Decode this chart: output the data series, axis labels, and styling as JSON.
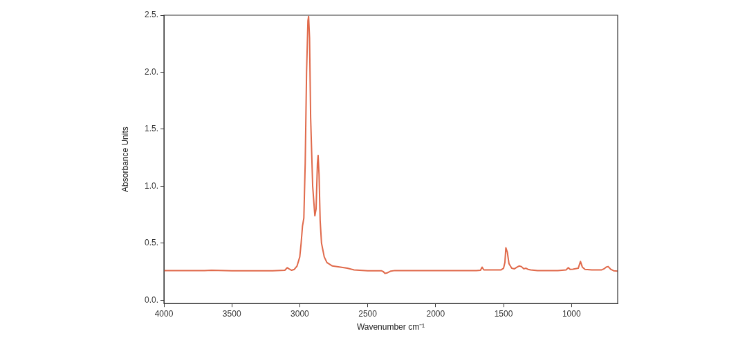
{
  "chart_data": {
    "type": "line",
    "xlabel": "Wavenumber cm⁻¹",
    "ylabel": "Absorbance Units",
    "xlim": [
      4000,
      660
    ],
    "xticks": [
      4000,
      3500,
      3000,
      2500,
      2000,
      1500,
      1000
    ],
    "ylim": [
      -0.03,
      2.5
    ],
    "yticks": [
      {
        "value": 0,
        "label": "0.0."
      },
      {
        "value": 0.5,
        "label": "0.5."
      },
      {
        "value": 1,
        "label": "1.0."
      },
      {
        "value": 1.5,
        "label": "1.5."
      },
      {
        "value": 2,
        "label": "2.0."
      },
      {
        "value": 2.5,
        "label": "2.5."
      }
    ],
    "grid": false,
    "legend": false,
    "marker": "none",
    "line_style": "solid",
    "series": [
      {
        "color": "#e0694a",
        "x": [
          4000,
          3700,
          3650,
          3500,
          3200,
          3110,
          3092,
          3080,
          3060,
          3040,
          3020,
          3000,
          2990,
          2980,
          2970,
          2960,
          2950,
          2940,
          2935,
          2928,
          2920,
          2905,
          2889,
          2880,
          2870,
          2865,
          2858,
          2850,
          2840,
          2820,
          2800,
          2760,
          2700,
          2650,
          2600,
          2500,
          2400,
          2385,
          2373,
          2355,
          2330,
          2300,
          1700,
          1670,
          1658,
          1645,
          1520,
          1500,
          1490,
          1483,
          1472,
          1460,
          1440,
          1420,
          1400,
          1385,
          1370,
          1350,
          1335,
          1320,
          1300,
          1250,
          1100,
          1040,
          1023,
          1010,
          990,
          950,
          934,
          920,
          900,
          850,
          780,
          760,
          745,
          730,
          710,
          690,
          660
        ],
        "values": [
          0.26,
          0.26,
          0.262,
          0.258,
          0.258,
          0.262,
          0.285,
          0.275,
          0.262,
          0.27,
          0.3,
          0.38,
          0.5,
          0.65,
          0.72,
          1.2,
          2.0,
          2.45,
          2.49,
          2.3,
          1.6,
          1.0,
          0.74,
          0.8,
          1.2,
          1.27,
          1.1,
          0.7,
          0.5,
          0.38,
          0.33,
          0.3,
          0.29,
          0.28,
          0.265,
          0.258,
          0.258,
          0.25,
          0.235,
          0.24,
          0.255,
          0.26,
          0.26,
          0.262,
          0.29,
          0.265,
          0.265,
          0.28,
          0.33,
          0.46,
          0.42,
          0.32,
          0.28,
          0.275,
          0.29,
          0.3,
          0.295,
          0.275,
          0.28,
          0.27,
          0.265,
          0.26,
          0.26,
          0.265,
          0.285,
          0.27,
          0.272,
          0.28,
          0.34,
          0.29,
          0.27,
          0.265,
          0.265,
          0.275,
          0.29,
          0.295,
          0.27,
          0.258,
          0.255
        ]
      }
    ]
  }
}
